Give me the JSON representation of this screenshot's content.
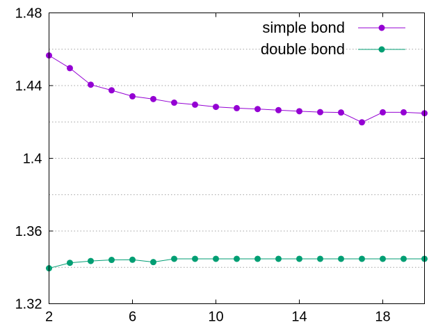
{
  "chart_data": {
    "type": "line",
    "title": "",
    "xlabel": "",
    "ylabel": "",
    "xlim": [
      2,
      20
    ],
    "ylim": [
      1.32,
      1.48
    ],
    "xticks": [
      2,
      6,
      10,
      14,
      18
    ],
    "yticks": [
      1.32,
      1.36,
      1.4,
      1.44,
      1.48
    ],
    "xtick_labels": [
      "2",
      "6",
      "10",
      "14",
      "18"
    ],
    "ytick_labels": [
      "1.32",
      "1.36",
      "1.4",
      "1.44",
      "1.48"
    ],
    "grid": true,
    "legend_position": "top-right",
    "x": [
      2,
      3,
      4,
      5,
      6,
      7,
      8,
      9,
      10,
      11,
      12,
      13,
      14,
      15,
      16,
      17,
      18,
      19,
      20
    ],
    "series": [
      {
        "name": "simple bond",
        "color": "#9400d3",
        "values": [
          1.4566,
          1.4496,
          1.4405,
          1.4374,
          1.4341,
          1.4326,
          1.4306,
          1.4295,
          1.4283,
          1.4276,
          1.4271,
          1.4265,
          1.4259,
          1.4254,
          1.4252,
          1.4198,
          1.4253,
          1.4253,
          1.4248
        ]
      },
      {
        "name": "double bond",
        "color": "#009e73",
        "values": [
          1.3395,
          1.3425,
          1.3435,
          1.3441,
          1.3442,
          1.3429,
          1.3447,
          1.3447,
          1.3447,
          1.3447,
          1.3447,
          1.3447,
          1.3447,
          1.3447,
          1.3447,
          1.3447,
          1.3447,
          1.3447,
          1.3447
        ]
      }
    ]
  }
}
